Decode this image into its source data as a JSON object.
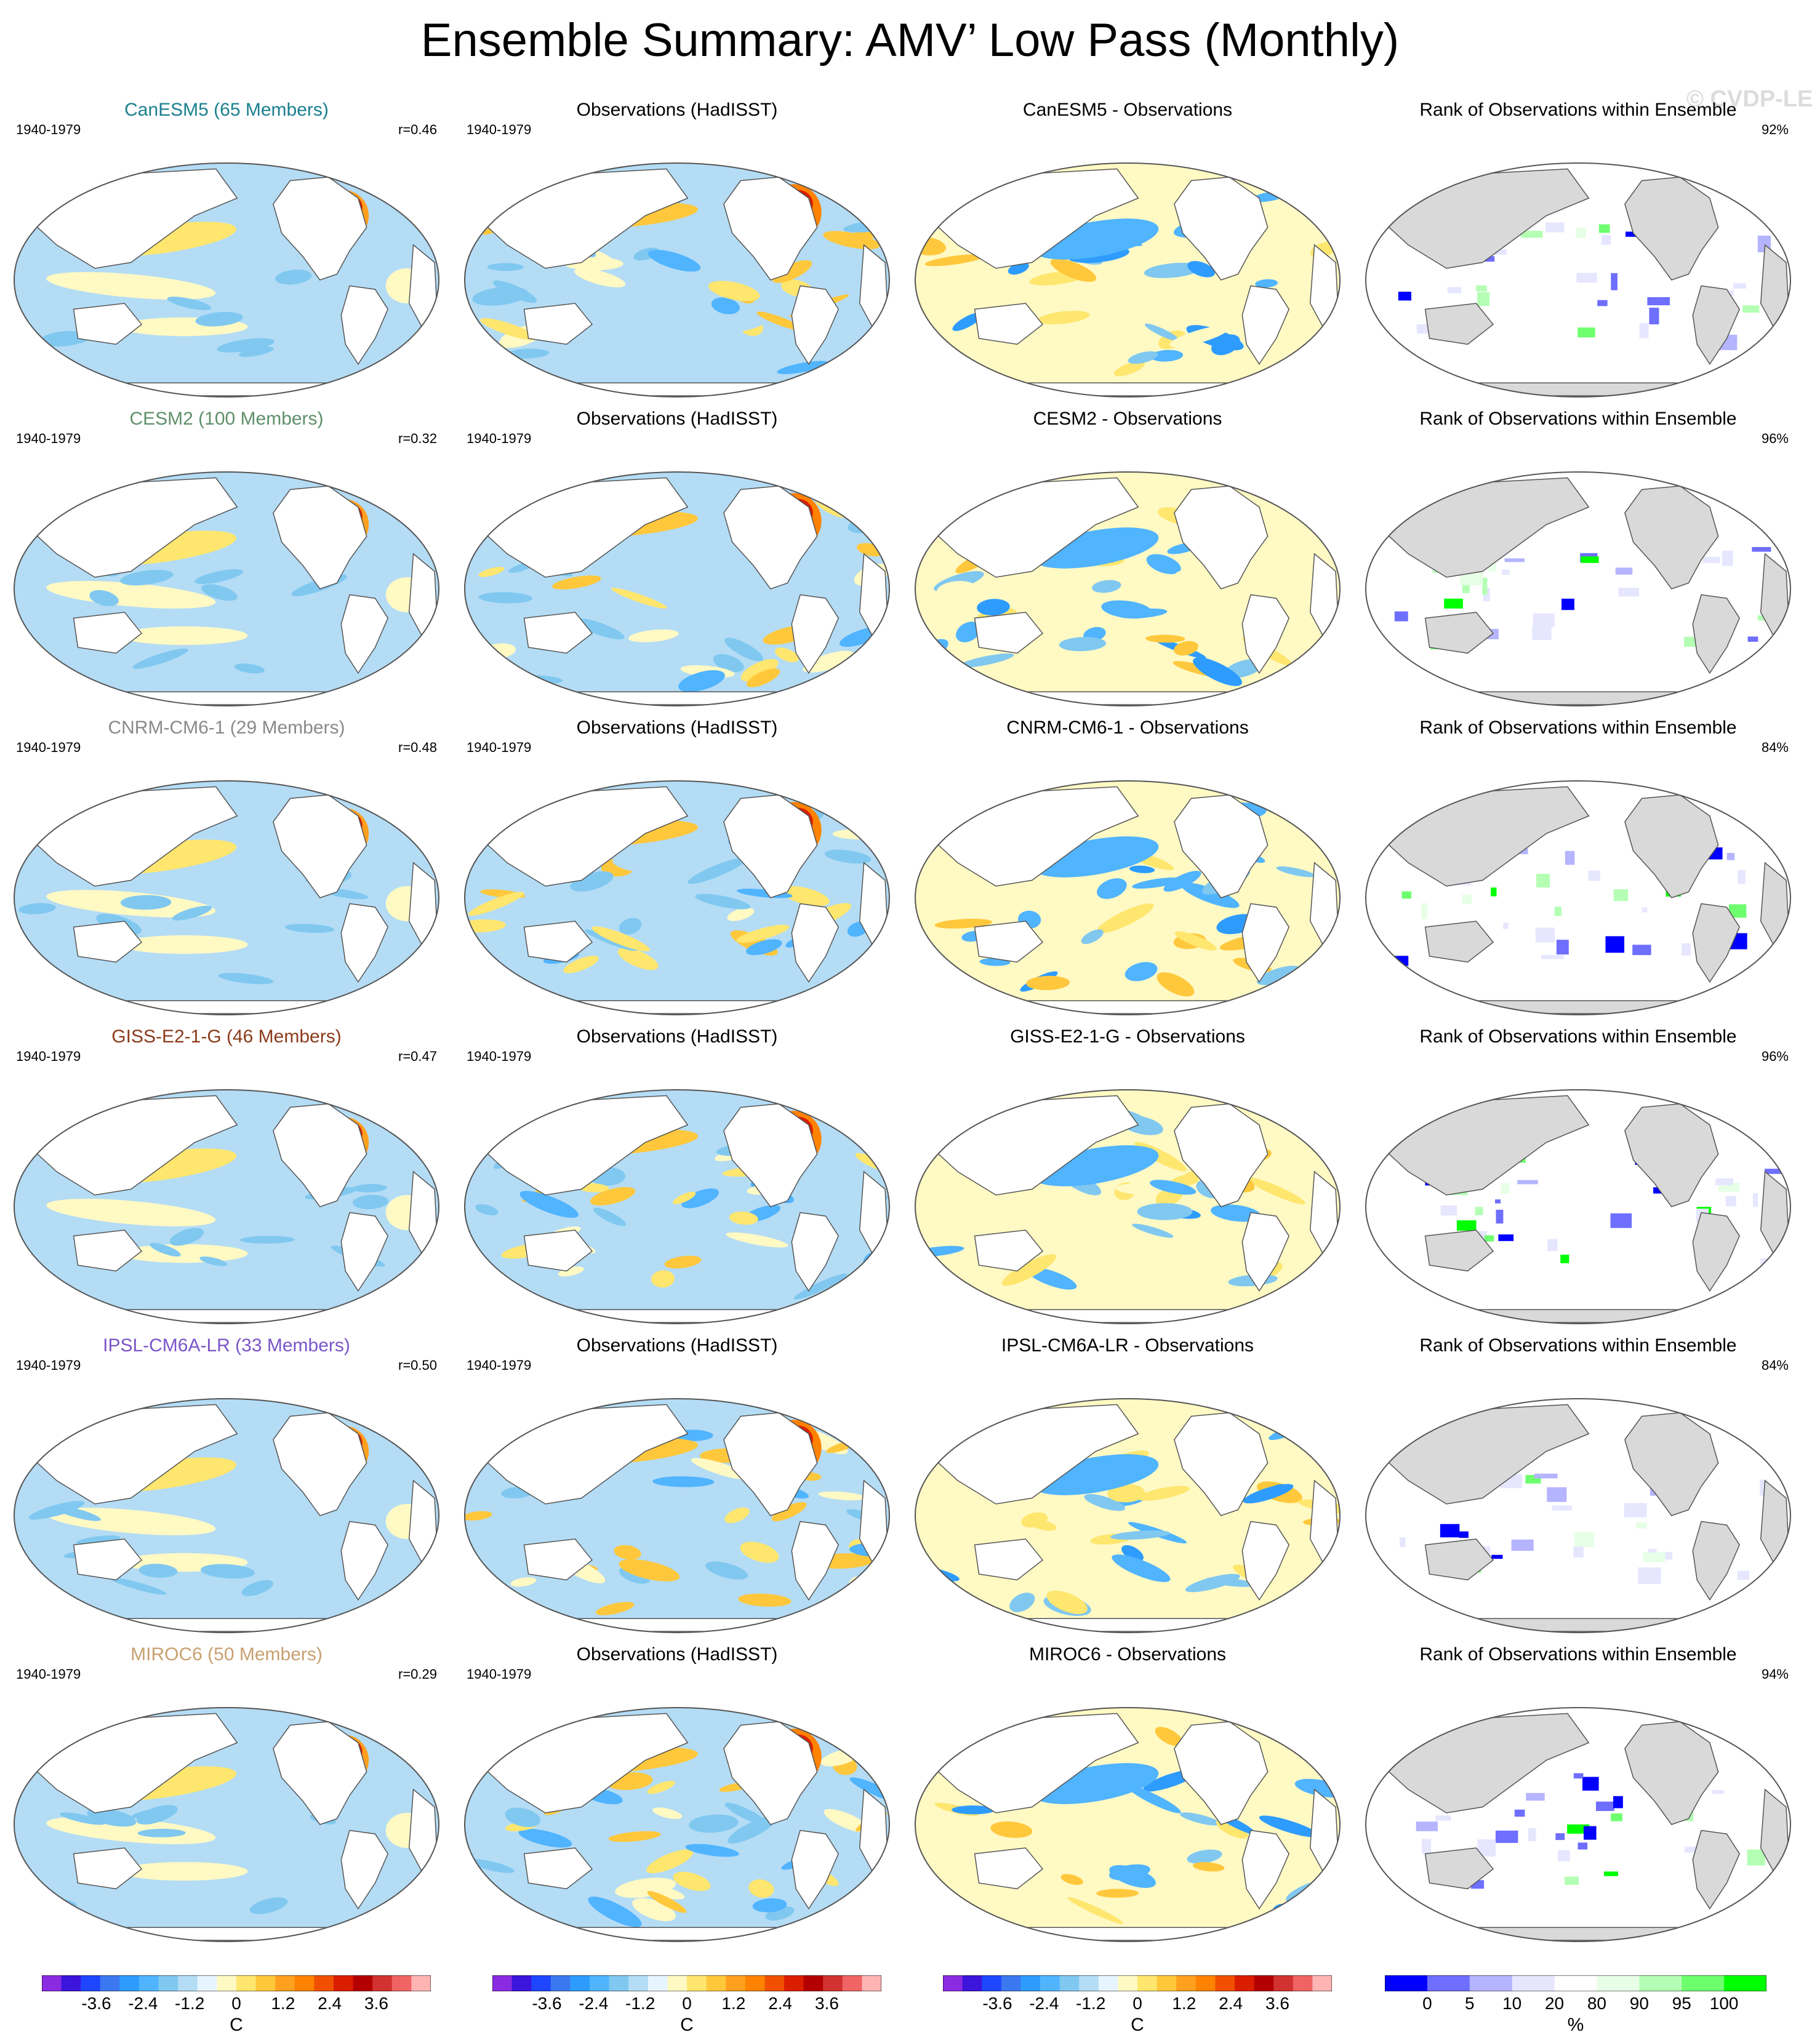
{
  "title": "Ensemble Summary: AMV’ Low Pass (Monthly)",
  "watermark": "© CVDP-LE",
  "period": "1940-1979",
  "obs_title": "Observations (HadISST)",
  "rank_title": "Rank of Observations within Ensemble",
  "colors": {
    "land_rank": "#d9d9d9",
    "coast": "#555555"
  },
  "rows": [
    {
      "model_title": "CanESM5 (65 Members)",
      "model_color": "#1a7f8e",
      "r": "r=0.46",
      "diff_title": "CanESM5 - Observations",
      "rank_pct": "92%"
    },
    {
      "model_title": "CESM2 (100 Members)",
      "model_color": "#5f8f6a",
      "r": "r=0.32",
      "diff_title": "CESM2 - Observations",
      "rank_pct": "96%"
    },
    {
      "model_title": "CNRM-CM6-1 (29 Members)",
      "model_color": "#8a8a8a",
      "r": "r=0.48",
      "diff_title": "CNRM-CM6-1 - Observations",
      "rank_pct": "84%"
    },
    {
      "model_title": "GISS-E2-1-G (46 Members)",
      "model_color": "#8b3a1a",
      "r": "r=0.47",
      "diff_title": "GISS-E2-1-G - Observations",
      "rank_pct": "96%"
    },
    {
      "model_title": "IPSL-CM6A-LR (33 Members)",
      "model_color": "#7b55c8",
      "r": "r=0.50",
      "diff_title": "IPSL-CM6A-LR - Observations",
      "rank_pct": "84%"
    },
    {
      "model_title": "MIROC6 (50 Members)",
      "model_color": "#c8a070",
      "r": "r=0.29",
      "diff_title": "MIROC6 - Observations",
      "rank_pct": "94%"
    }
  ],
  "colorbar_temp": {
    "colors": [
      "#8a2be2",
      "#3c14dc",
      "#1e46ff",
      "#3c78f0",
      "#2e9cff",
      "#50b4ff",
      "#80c8f0",
      "#b4dcf5",
      "#e6f5ff",
      "#fff9c4",
      "#ffe66e",
      "#ffc83c",
      "#ffa01e",
      "#ff8200",
      "#f05000",
      "#dc1e00",
      "#b40000",
      "#d23232",
      "#f06464",
      "#ffb4b4"
    ],
    "ticks": [
      "-3.6",
      "-2.4",
      "-1.2",
      "0",
      "1.2",
      "2.4",
      "3.6"
    ],
    "tick_values": [
      -3.6,
      -2.4,
      -1.2,
      0,
      1.2,
      2.4,
      3.6
    ],
    "range": [
      -5.0,
      5.0
    ],
    "unit": "C"
  },
  "colorbar_rank": {
    "colors": [
      "#0000ff",
      "#6e6eff",
      "#b4b4ff",
      "#e6e6ff",
      "#ffffff",
      "#e6ffe6",
      "#b4ffb4",
      "#6eff6e",
      "#00ff00"
    ],
    "ticks": [
      "0",
      "5",
      "10",
      "20",
      "80",
      "90",
      "95",
      "100"
    ],
    "unit": "%"
  }
}
